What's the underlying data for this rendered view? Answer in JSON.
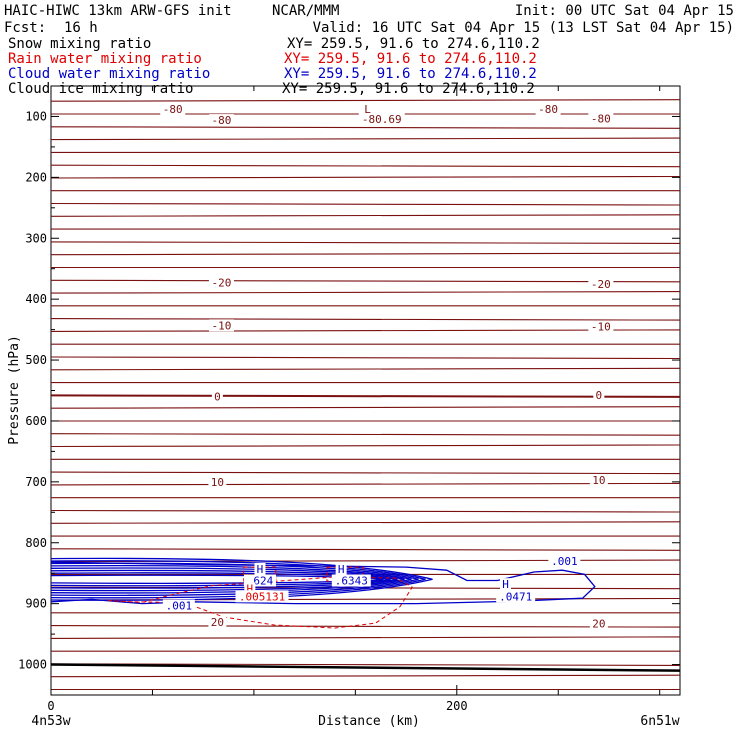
{
  "header": {
    "model_title": "HAIC-HIWC 13km ARW-GFS init",
    "institution": "NCAR/MMM",
    "init": "Init: 00 UTC Sat 04 Apr 15",
    "fcst_label": "Fcst:",
    "fcst_value": "16 h",
    "valid": "Valid: 16 UTC Sat 04 Apr 15 (13 LST Sat 04 Apr 15)"
  },
  "fields": [
    {
      "name": "Snow mixing ratio",
      "xy": "XY= 259.5, 91.6 to 274.6,110.2",
      "color": "#000000"
    },
    {
      "name": "Rain water mixing ratio",
      "xy": "XY= 259.5, 91.6 to 274.6,110.2",
      "color": "#e00000"
    },
    {
      "name": "Cloud water mixing ratio",
      "xy": "XY= 259.5, 91.6 to 274.6,110.2",
      "color": "#0000c8"
    },
    {
      "name": "Cloud ice mixing ratio",
      "xy": "XY= 259.5, 91.6 to 274.6,110.2",
      "color": "#000000"
    }
  ],
  "chart_data": {
    "type": "contour cross-section",
    "xlabel": "Distance (km)",
    "ylabel": "Pressure (hPa)",
    "xlim": [
      0,
      310
    ],
    "ylim": [
      1050,
      50
    ],
    "x_ticks": [
      0,
      200
    ],
    "x_tick_labels": [
      "0",
      "200"
    ],
    "y_ticks": [
      100,
      200,
      300,
      400,
      500,
      600,
      700,
      800,
      900,
      1000
    ],
    "y_tick_labels": [
      "100",
      "200",
      "300",
      "400",
      "500",
      "600",
      "700",
      "800",
      "900",
      "1000"
    ],
    "endpoint_labels": {
      "left": "4n53w",
      "right": "6n51w"
    },
    "temperature_contours": {
      "color": "#7a1010",
      "levels": [
        -80,
        -20,
        -10,
        0,
        10,
        20
      ],
      "labels": [
        {
          "text": "-80",
          "x": 60,
          "p": 88
        },
        {
          "text": "-80",
          "x": 84,
          "p": 106
        },
        {
          "text": "-80",
          "x": 245,
          "p": 88
        },
        {
          "text": "-80",
          "x": 271,
          "p": 103
        },
        {
          "text": "-80.69",
          "x": 163,
          "p": 104
        },
        {
          "text": "L",
          "x": 156,
          "p": 88
        },
        {
          "text": "-20",
          "x": 84,
          "p": 373
        },
        {
          "text": "-20",
          "x": 271,
          "p": 375
        },
        {
          "text": "-10",
          "x": 84,
          "p": 443
        },
        {
          "text": "-10",
          "x": 271,
          "p": 445
        },
        {
          "text": "0",
          "x": 82,
          "p": 560
        },
        {
          "text": "0",
          "x": 270,
          "p": 557
        },
        {
          "text": "10",
          "x": 82,
          "p": 700
        },
        {
          "text": "10",
          "x": 270,
          "p": 697
        },
        {
          "text": "20",
          "x": 82,
          "p": 930
        },
        {
          "text": "20",
          "x": 270,
          "p": 933
        }
      ]
    },
    "cloud_water_labels": [
      {
        "text": "H",
        "x": 103,
        "p": 843
      },
      {
        "text": ".624",
        "x": 103,
        "p": 862
      },
      {
        "text": "H",
        "x": 143,
        "p": 843
      },
      {
        "text": ".6343",
        "x": 148,
        "p": 862
      },
      {
        "text": ".001",
        "x": 63,
        "p": 903
      },
      {
        "text": "H",
        "x": 224,
        "p": 868
      },
      {
        "text": ".0471",
        "x": 229,
        "p": 888
      },
      {
        "text": ".001",
        "x": 253,
        "p": 830
      }
    ],
    "rain_labels": [
      {
        "text": "H",
        "x": 98,
        "p": 875
      },
      {
        "text": ".005131",
        "x": 104,
        "p": 888
      }
    ],
    "surface_pressure": {
      "x": [
        0,
        310
      ],
      "p": [
        1000,
        1010
      ]
    }
  }
}
